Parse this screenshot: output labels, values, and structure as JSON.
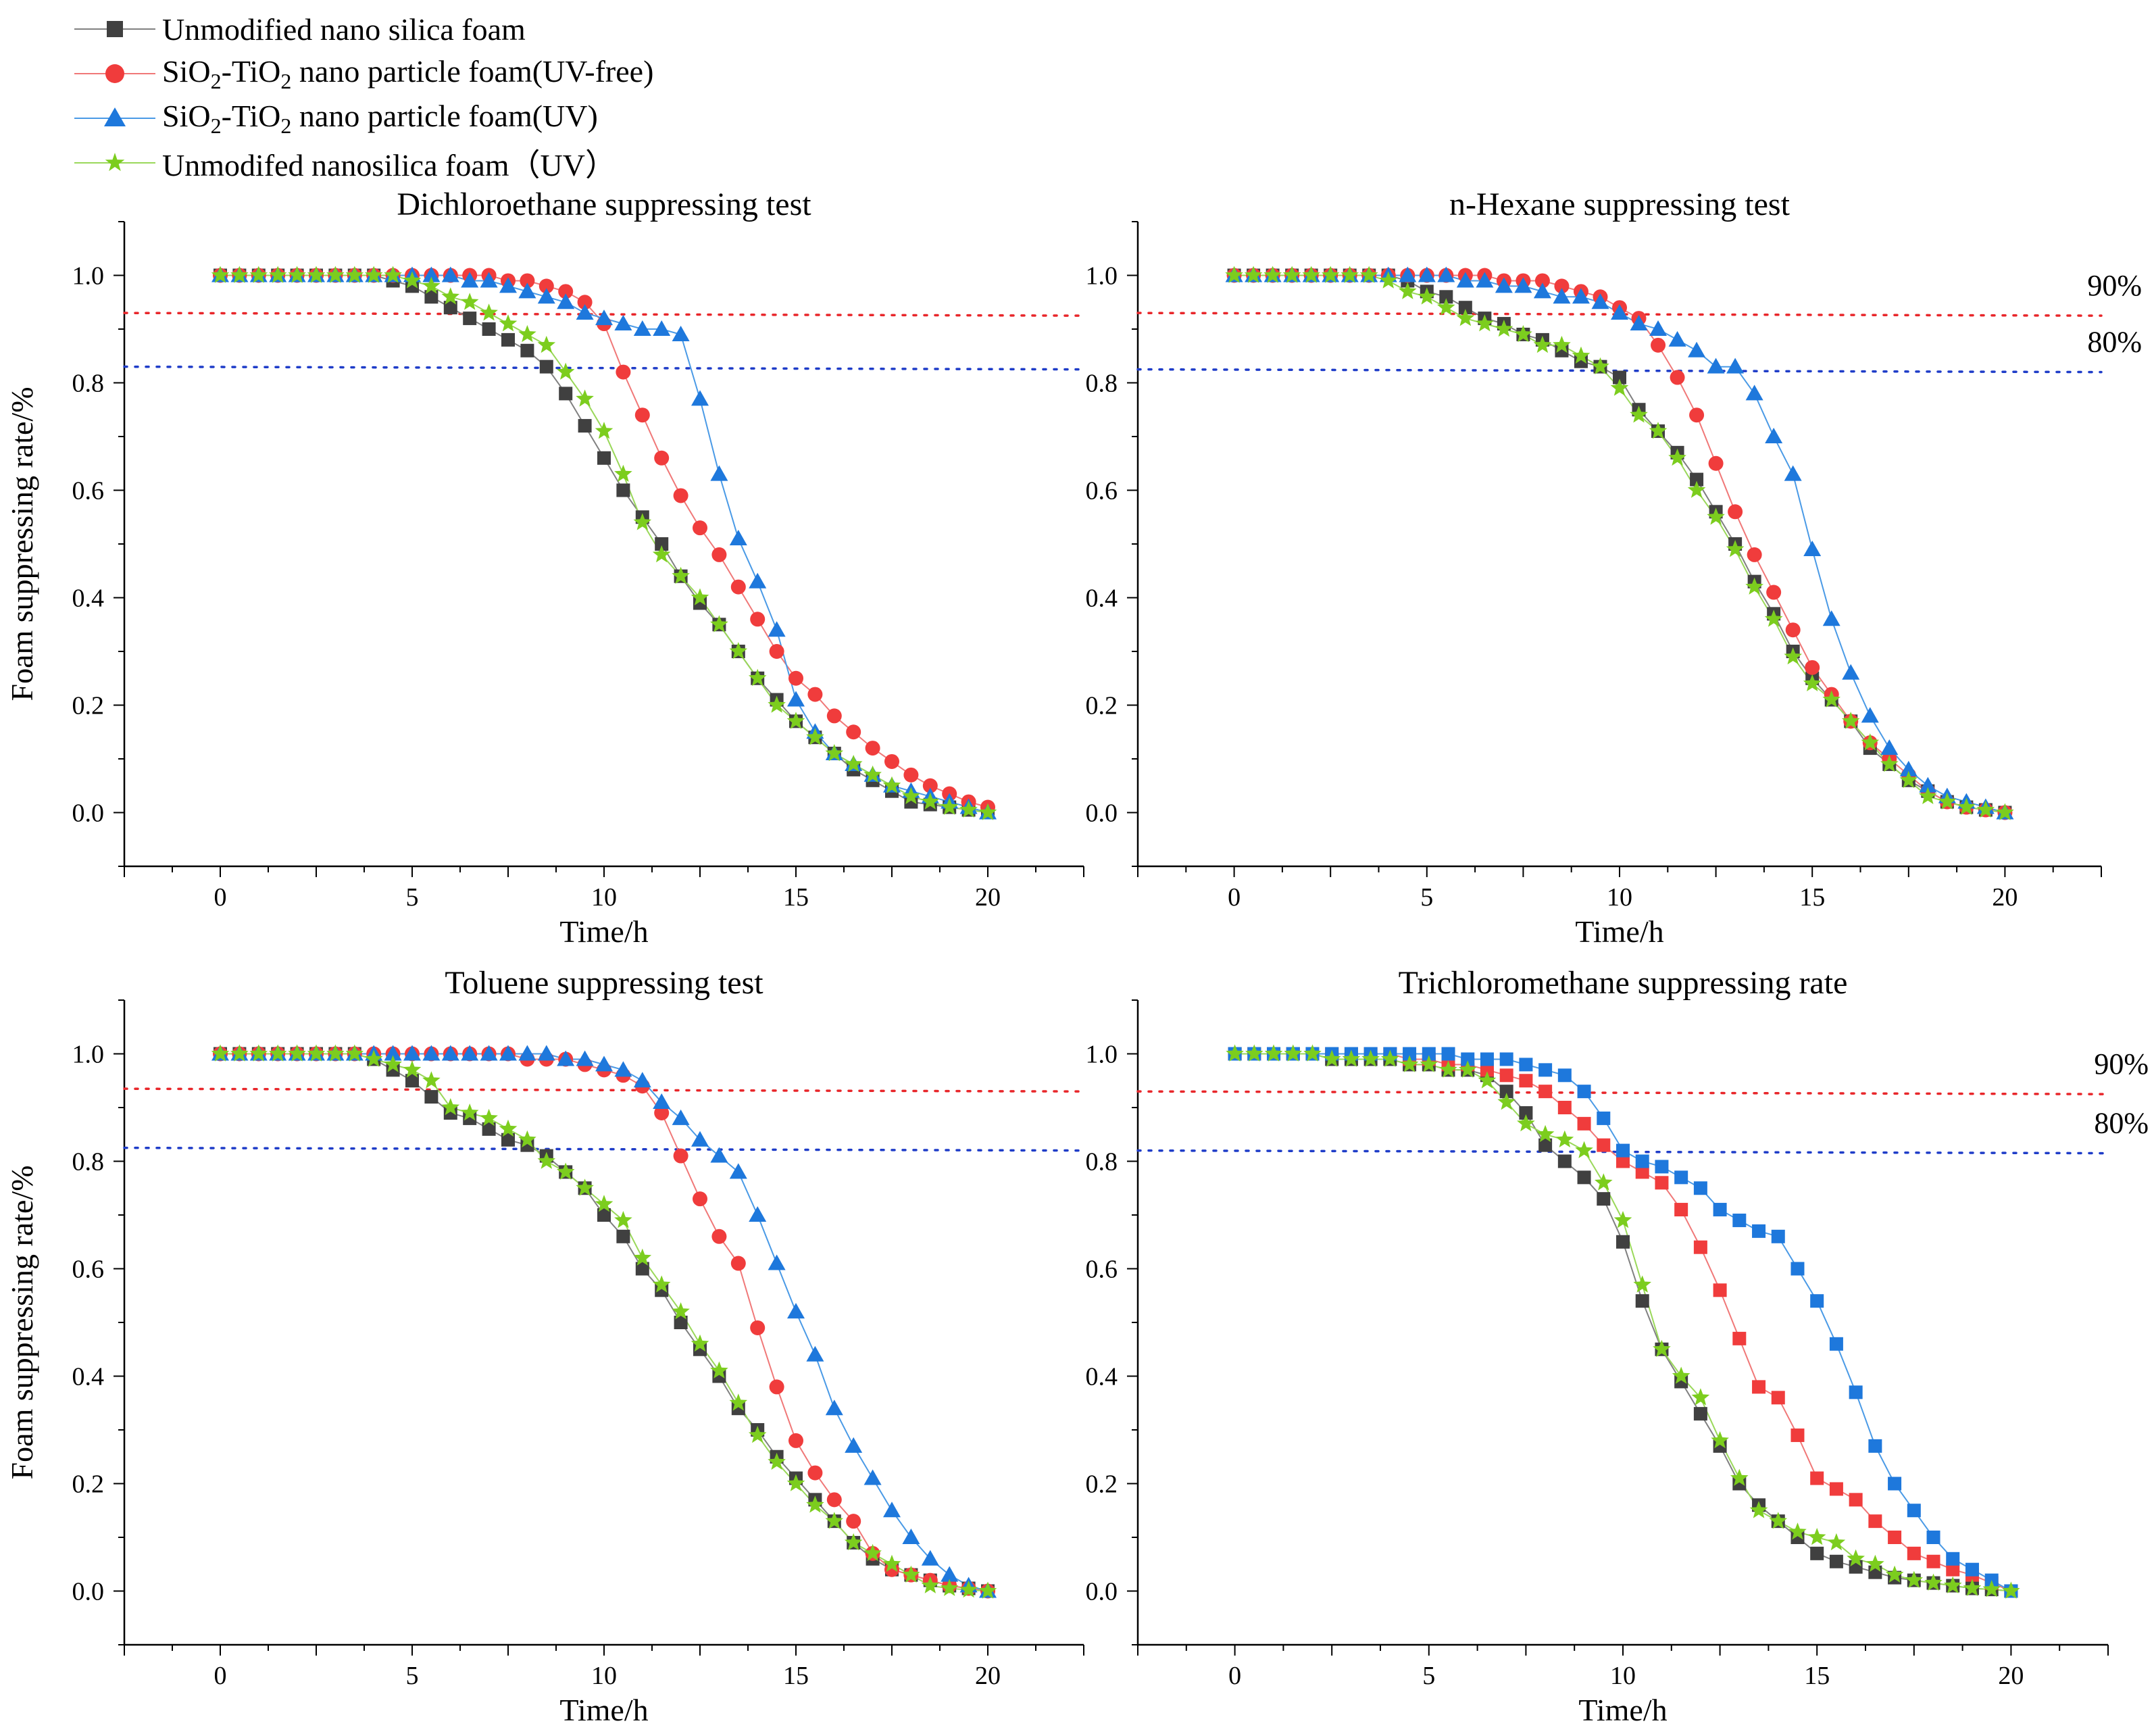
{
  "legend": {
    "items": [
      {
        "key": "silica",
        "label": "Unmodified nano silica foam"
      },
      {
        "key": "uvfree",
        "label_html": "SiO<sub>2</sub>-TiO<sub>2</sub> nano particle foam(UV-free)",
        "label": "SiO2-TiO2 nano particle foam(UV-free)"
      },
      {
        "key": "uv",
        "label_html": "SiO<sub>2</sub>-TiO<sub>2</sub> nano particle foam(UV)",
        "label": "SiO2-TiO2 nano particle foam(UV)"
      },
      {
        "key": "silicauv",
        "label": "Unmodifed nanosilica foam（UV）"
      }
    ]
  },
  "styles": {
    "silica": {
      "color": "#404040",
      "line": "#808080",
      "marker": "square"
    },
    "uvfree": {
      "color": "#f03c3c",
      "line": "#f07878",
      "marker": "circle"
    },
    "uv": {
      "color": "#1e78dc",
      "line": "#4a9ae6",
      "marker": "triangle"
    },
    "silicauv": {
      "color": "#7ccd1e",
      "line": "#9ad85a",
      "marker": "star"
    },
    "ref90": "#e8262a",
    "ref80": "#1e3cc8"
  },
  "chart_data": [
    {
      "type": "line",
      "title": "Dichloroethane suppressing test",
      "xlabel": "Time/h",
      "ylabel": "Foam suppressing rate/%",
      "xlim": [
        -2.5,
        22.5
      ],
      "ylim": [
        -0.1,
        1.1
      ],
      "xticks": [
        "0",
        "5",
        "10",
        "15",
        "20"
      ],
      "yticks": [
        "0.0",
        "0.2",
        "0.4",
        "0.6",
        "0.8",
        "1.0"
      ],
      "ref_lines": [
        {
          "y": 0.93,
          "color": "ref90",
          "label": ""
        },
        {
          "y": 0.83,
          "color": "ref80",
          "label": ""
        }
      ],
      "x": [
        0,
        0.5,
        1,
        1.5,
        2,
        2.5,
        3,
        3.5,
        4,
        4.5,
        5,
        5.5,
        6,
        6.5,
        7,
        7.5,
        8,
        8.5,
        9,
        9.5,
        10,
        10.5,
        11,
        11.5,
        12,
        12.5,
        13,
        13.5,
        14,
        14.5,
        15,
        15.5,
        16,
        16.5,
        17,
        17.5,
        18,
        18.5,
        19,
        19.5,
        20
      ],
      "series": [
        {
          "name": "silica",
          "marker_override": "",
          "values": [
            1,
            1,
            1,
            1,
            1,
            1,
            1,
            1,
            1,
            0.99,
            0.98,
            0.96,
            0.94,
            0.92,
            0.9,
            0.88,
            0.86,
            0.83,
            0.78,
            0.72,
            0.66,
            0.6,
            0.55,
            0.5,
            0.44,
            0.39,
            0.35,
            0.3,
            0.25,
            0.21,
            0.17,
            0.14,
            0.11,
            0.08,
            0.06,
            0.04,
            0.02,
            0.015,
            0.01,
            0.005,
            0
          ]
        },
        {
          "name": "uvfree",
          "marker_override": "",
          "values": [
            1,
            1,
            1,
            1,
            1,
            1,
            1,
            1,
            1,
            1,
            1,
            1,
            1,
            1,
            1,
            0.99,
            0.99,
            0.98,
            0.97,
            0.95,
            0.91,
            0.82,
            0.74,
            0.66,
            0.59,
            0.53,
            0.48,
            0.42,
            0.36,
            0.3,
            0.25,
            0.22,
            0.18,
            0.15,
            0.12,
            0.095,
            0.07,
            0.05,
            0.035,
            0.02,
            0.01
          ]
        },
        {
          "name": "uv",
          "marker_override": "",
          "values": [
            1,
            1,
            1,
            1,
            1,
            1,
            1,
            1,
            1,
            1,
            1,
            1,
            1,
            0.99,
            0.99,
            0.98,
            0.97,
            0.96,
            0.95,
            0.93,
            0.92,
            0.91,
            0.9,
            0.9,
            0.89,
            0.77,
            0.63,
            0.51,
            0.43,
            0.34,
            0.21,
            0.15,
            0.11,
            0.09,
            0.07,
            0.05,
            0.04,
            0.03,
            0.02,
            0.01,
            0
          ]
        },
        {
          "name": "silicauv",
          "marker_override": "",
          "values": [
            1,
            1,
            1,
            1,
            1,
            1,
            1,
            1,
            1,
            1,
            0.99,
            0.98,
            0.96,
            0.95,
            0.93,
            0.91,
            0.89,
            0.87,
            0.82,
            0.77,
            0.71,
            0.63,
            0.54,
            0.48,
            0.44,
            0.4,
            0.35,
            0.3,
            0.25,
            0.2,
            0.17,
            0.14,
            0.11,
            0.09,
            0.07,
            0.05,
            0.03,
            0.02,
            0.01,
            0.005,
            0
          ]
        }
      ]
    },
    {
      "type": "line",
      "title": "n-Hexane suppressing test",
      "xlabel": "Time/h",
      "ylabel": "",
      "xlim": [
        -2.5,
        22.5
      ],
      "ylim": [
        -0.1,
        1.1
      ],
      "xticks": [
        "0",
        "5",
        "10",
        "15",
        "20"
      ],
      "yticks": [
        "0.0",
        "0.2",
        "0.4",
        "0.6",
        "0.8",
        "1.0"
      ],
      "ref_lines": [
        {
          "y": 0.93,
          "color": "ref90",
          "label": "90%"
        },
        {
          "y": 0.825,
          "color": "ref80",
          "label": "80%"
        }
      ],
      "x": [
        0,
        0.5,
        1,
        1.5,
        2,
        2.5,
        3,
        3.5,
        4,
        4.5,
        5,
        5.5,
        6,
        6.5,
        7,
        7.5,
        8,
        8.5,
        9,
        9.5,
        10,
        10.5,
        11,
        11.5,
        12,
        12.5,
        13,
        13.5,
        14,
        14.5,
        15,
        15.5,
        16,
        16.5,
        17,
        17.5,
        18,
        18.5,
        19,
        19.5,
        20
      ],
      "series": [
        {
          "name": "silica",
          "marker_override": "",
          "values": [
            1,
            1,
            1,
            1,
            1,
            1,
            1,
            1,
            1,
            0.99,
            0.97,
            0.96,
            0.94,
            0.92,
            0.91,
            0.89,
            0.88,
            0.86,
            0.84,
            0.83,
            0.81,
            0.75,
            0.71,
            0.67,
            0.62,
            0.56,
            0.5,
            0.43,
            0.37,
            0.3,
            0.25,
            0.21,
            0.17,
            0.12,
            0.09,
            0.06,
            0.04,
            0.02,
            0.01,
            0.005,
            0
          ]
        },
        {
          "name": "uvfree",
          "marker_override": "",
          "values": [
            1,
            1,
            1,
            1,
            1,
            1,
            1,
            1,
            1,
            1,
            1,
            1,
            1,
            1,
            0.99,
            0.99,
            0.99,
            0.98,
            0.97,
            0.96,
            0.94,
            0.92,
            0.87,
            0.81,
            0.74,
            0.65,
            0.56,
            0.48,
            0.41,
            0.34,
            0.27,
            0.22,
            0.17,
            0.13,
            0.1,
            0.07,
            0.04,
            0.02,
            0.01,
            0.005,
            0
          ]
        },
        {
          "name": "uv",
          "marker_override": "",
          "values": [
            1,
            1,
            1,
            1,
            1,
            1,
            1,
            1,
            1,
            1,
            1,
            1,
            0.99,
            0.99,
            0.98,
            0.98,
            0.97,
            0.96,
            0.96,
            0.95,
            0.93,
            0.91,
            0.9,
            0.88,
            0.86,
            0.83,
            0.83,
            0.78,
            0.7,
            0.63,
            0.49,
            0.36,
            0.26,
            0.18,
            0.12,
            0.08,
            0.05,
            0.03,
            0.02,
            0.01,
            0
          ]
        },
        {
          "name": "silicauv",
          "marker_override": "",
          "values": [
            1,
            1,
            1,
            1,
            1,
            1,
            1,
            1,
            0.99,
            0.97,
            0.96,
            0.94,
            0.92,
            0.91,
            0.9,
            0.89,
            0.87,
            0.87,
            0.85,
            0.83,
            0.79,
            0.74,
            0.71,
            0.66,
            0.6,
            0.55,
            0.49,
            0.42,
            0.36,
            0.29,
            0.24,
            0.21,
            0.17,
            0.13,
            0.09,
            0.06,
            0.03,
            0.02,
            0.01,
            0.005,
            0
          ]
        }
      ]
    },
    {
      "type": "line",
      "title": "Toluene suppressing test",
      "xlabel": "Time/h",
      "ylabel": "Foam suppressing rate/%",
      "xlim": [
        -2.5,
        22.5
      ],
      "ylim": [
        -0.1,
        1.1
      ],
      "xticks": [
        "0",
        "5",
        "10",
        "15",
        "20"
      ],
      "yticks": [
        "0.0",
        "0.2",
        "0.4",
        "0.6",
        "0.8",
        "1.0"
      ],
      "ref_lines": [
        {
          "y": 0.935,
          "color": "ref90",
          "label": ""
        },
        {
          "y": 0.825,
          "color": "ref80",
          "label": ""
        }
      ],
      "x": [
        0,
        0.5,
        1,
        1.5,
        2,
        2.5,
        3,
        3.5,
        4,
        4.5,
        5,
        5.5,
        6,
        6.5,
        7,
        7.5,
        8,
        8.5,
        9,
        9.5,
        10,
        10.5,
        11,
        11.5,
        12,
        12.5,
        13,
        13.5,
        14,
        14.5,
        15,
        15.5,
        16,
        16.5,
        17,
        17.5,
        18,
        18.5,
        19,
        19.5,
        20
      ],
      "series": [
        {
          "name": "silica",
          "marker_override": "",
          "values": [
            1,
            1,
            1,
            1,
            1,
            1,
            1,
            1,
            0.99,
            0.97,
            0.95,
            0.92,
            0.89,
            0.88,
            0.86,
            0.84,
            0.83,
            0.81,
            0.78,
            0.75,
            0.7,
            0.66,
            0.6,
            0.56,
            0.5,
            0.45,
            0.4,
            0.34,
            0.3,
            0.25,
            0.21,
            0.17,
            0.13,
            0.09,
            0.06,
            0.04,
            0.03,
            0.02,
            0.01,
            0.005,
            0
          ]
        },
        {
          "name": "uvfree",
          "marker_override": "",
          "values": [
            1,
            1,
            1,
            1,
            1,
            1,
            1,
            1,
            1,
            1,
            1,
            1,
            1,
            1,
            1,
            1,
            0.99,
            0.99,
            0.99,
            0.98,
            0.97,
            0.96,
            0.94,
            0.89,
            0.81,
            0.73,
            0.66,
            0.61,
            0.49,
            0.38,
            0.28,
            0.22,
            0.17,
            0.13,
            0.07,
            0.04,
            0.03,
            0.02,
            0.01,
            0.005,
            0
          ]
        },
        {
          "name": "uv",
          "marker_override": "",
          "values": [
            1,
            1,
            1,
            1,
            1,
            1,
            1,
            1,
            1,
            1,
            1,
            1,
            1,
            1,
            1,
            1,
            1,
            1,
            0.99,
            0.99,
            0.98,
            0.97,
            0.95,
            0.91,
            0.88,
            0.84,
            0.81,
            0.78,
            0.7,
            0.61,
            0.52,
            0.44,
            0.34,
            0.27,
            0.21,
            0.15,
            0.1,
            0.06,
            0.03,
            0.01,
            0
          ]
        },
        {
          "name": "silicauv",
          "marker_override": "",
          "values": [
            1,
            1,
            1,
            1,
            1,
            1,
            1,
            1,
            0.99,
            0.98,
            0.97,
            0.95,
            0.9,
            0.89,
            0.88,
            0.86,
            0.84,
            0.8,
            0.78,
            0.75,
            0.72,
            0.69,
            0.62,
            0.57,
            0.52,
            0.46,
            0.41,
            0.35,
            0.29,
            0.24,
            0.2,
            0.16,
            0.13,
            0.09,
            0.07,
            0.05,
            0.03,
            0.01,
            0.005,
            0.002,
            0
          ]
        }
      ]
    },
    {
      "type": "line",
      "title": "Trichloromethane suppressing rate",
      "xlabel": "Time/h",
      "ylabel": "",
      "xlim": [
        -2.5,
        22.5
      ],
      "ylim": [
        -0.1,
        1.1
      ],
      "xticks": [
        "0",
        "5",
        "10",
        "15",
        "20"
      ],
      "yticks": [
        "0.0",
        "0.2",
        "0.4",
        "0.6",
        "0.8",
        "1.0"
      ],
      "ref_lines": [
        {
          "y": 0.93,
          "color": "ref90",
          "label": "90%"
        },
        {
          "y": 0.82,
          "color": "ref80",
          "label": "80%"
        }
      ],
      "x": [
        0,
        0.5,
        1,
        1.5,
        2,
        2.5,
        3,
        3.5,
        4,
        4.5,
        5,
        5.5,
        6,
        6.5,
        7,
        7.5,
        8,
        8.5,
        9,
        9.5,
        10,
        10.5,
        11,
        11.5,
        12,
        12.5,
        13,
        13.5,
        14,
        14.5,
        15,
        15.5,
        16,
        16.5,
        17,
        17.5,
        18,
        18.5,
        19,
        19.5,
        20
      ],
      "series": [
        {
          "name": "silica",
          "marker_override": "square",
          "values": [
            1,
            1,
            1,
            1,
            1,
            0.99,
            0.99,
            0.99,
            0.99,
            0.98,
            0.98,
            0.97,
            0.97,
            0.96,
            0.93,
            0.89,
            0.83,
            0.8,
            0.77,
            0.73,
            0.65,
            0.54,
            0.45,
            0.39,
            0.33,
            0.27,
            0.2,
            0.16,
            0.13,
            0.1,
            0.07,
            0.055,
            0.045,
            0.035,
            0.025,
            0.02,
            0.015,
            0.01,
            0.005,
            0.003,
            0
          ]
        },
        {
          "name": "uvfree",
          "marker_override": "square",
          "values": [
            1,
            1,
            1,
            1,
            1,
            1,
            1,
            1,
            1,
            0.99,
            0.99,
            0.98,
            0.98,
            0.97,
            0.96,
            0.95,
            0.93,
            0.9,
            0.87,
            0.83,
            0.8,
            0.78,
            0.76,
            0.71,
            0.64,
            0.56,
            0.47,
            0.38,
            0.36,
            0.29,
            0.21,
            0.19,
            0.17,
            0.13,
            0.1,
            0.07,
            0.055,
            0.04,
            0.03,
            0.015,
            0
          ]
        },
        {
          "name": "uv",
          "marker_override": "square",
          "values": [
            1,
            1,
            1,
            1,
            1,
            1,
            1,
            1,
            1,
            1,
            1,
            1,
            0.99,
            0.99,
            0.99,
            0.98,
            0.97,
            0.96,
            0.93,
            0.88,
            0.82,
            0.8,
            0.79,
            0.77,
            0.75,
            0.71,
            0.69,
            0.67,
            0.66,
            0.6,
            0.54,
            0.46,
            0.37,
            0.27,
            0.2,
            0.15,
            0.1,
            0.06,
            0.04,
            0.02,
            0
          ]
        },
        {
          "name": "silicauv",
          "marker_override": "",
          "values": [
            1,
            1,
            1,
            1,
            1,
            0.99,
            0.99,
            0.99,
            0.99,
            0.98,
            0.98,
            0.97,
            0.97,
            0.95,
            0.91,
            0.87,
            0.85,
            0.84,
            0.82,
            0.76,
            0.69,
            0.57,
            0.45,
            0.4,
            0.36,
            0.28,
            0.21,
            0.15,
            0.13,
            0.11,
            0.1,
            0.09,
            0.06,
            0.05,
            0.03,
            0.02,
            0.015,
            0.01,
            0.005,
            0.003,
            0
          ]
        }
      ]
    }
  ]
}
